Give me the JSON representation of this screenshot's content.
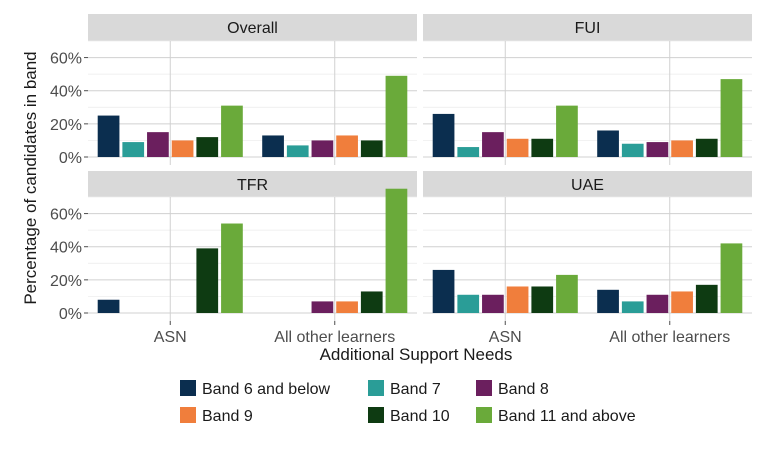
{
  "chart_data": {
    "type": "bar",
    "xlabel": "Additional Support Needs",
    "ylabel": "Percentage of candidates in band",
    "categories": [
      "ASN",
      "All other learners"
    ],
    "y_ticks": [
      "0%",
      "20%",
      "40%",
      "60%"
    ],
    "ylim": [
      0,
      70
    ],
    "grid": true,
    "legend_position": "bottom",
    "series": [
      {
        "name": "Band 6 and below",
        "color": "#0b2e4f"
      },
      {
        "name": "Band 7",
        "color": "#2a9d97"
      },
      {
        "name": "Band 8",
        "color": "#6b1f5e"
      },
      {
        "name": "Band 9",
        "color": "#f07e3c"
      },
      {
        "name": "Band 10",
        "color": "#0e3b12"
      },
      {
        "name": "Band 11 and above",
        "color": "#6aaa3a"
      }
    ],
    "panels": [
      {
        "title": "Overall",
        "values": {
          "ASN": [
            25,
            9,
            15,
            10,
            12,
            31
          ],
          "All other learners": [
            13,
            7,
            10,
            13,
            10,
            49
          ]
        }
      },
      {
        "title": "FUI",
        "values": {
          "ASN": [
            26,
            6,
            15,
            11,
            11,
            31
          ],
          "All other learners": [
            16,
            8,
            9,
            10,
            11,
            47
          ]
        }
      },
      {
        "title": "TFR",
        "values": {
          "ASN": [
            8,
            0,
            0,
            0,
            39,
            54
          ],
          "All other learners": [
            0,
            0,
            7,
            7,
            13,
            75
          ]
        }
      },
      {
        "title": "UAE",
        "values": {
          "ASN": [
            26,
            11,
            11,
            16,
            16,
            23
          ],
          "All other learners": [
            14,
            7,
            11,
            13,
            17,
            42
          ]
        }
      }
    ]
  }
}
